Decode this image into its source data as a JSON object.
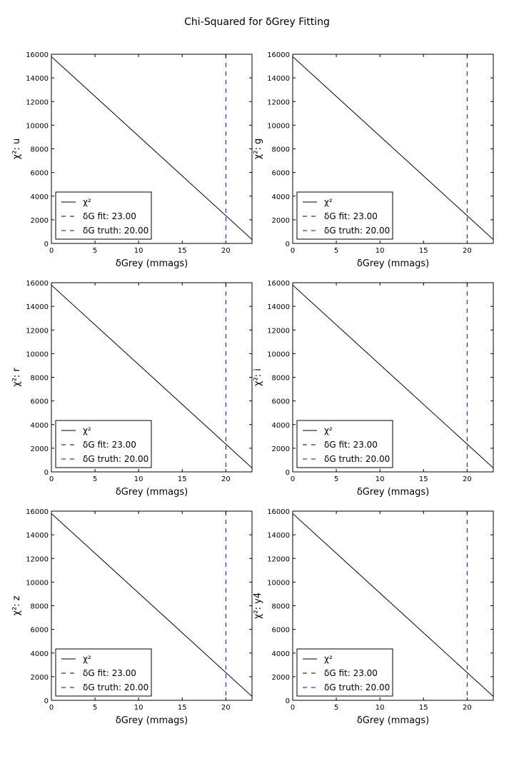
{
  "figure": {
    "suptitle": "Chi-Squared for δGrey Fitting"
  },
  "chart_data": [
    {
      "type": "line",
      "band": "u",
      "xlabel": "δGrey (mmags)",
      "ylabel": "χ²: u",
      "xlim": [
        0,
        23
      ],
      "ylim": [
        0,
        16000
      ],
      "xticks": [
        0,
        5,
        10,
        15,
        20
      ],
      "yticks": [
        0,
        2000,
        4000,
        6000,
        8000,
        10000,
        12000,
        14000,
        16000
      ],
      "series": [
        {
          "name": "χ²",
          "color": "#000000",
          "style": "solid",
          "x": [
            0,
            23
          ],
          "y": [
            15800,
            330
          ]
        }
      ],
      "vlines": [
        {
          "name": "δG fit: 23.00",
          "x": 23,
          "color": "#000000",
          "style": "dashed"
        },
        {
          "name": "δG truth: 20.00",
          "x": 20,
          "color": "#0000ff",
          "style": "dashed"
        }
      ],
      "legend": "lower-left",
      "grid": false
    },
    {
      "type": "line",
      "band": "g",
      "xlabel": "δGrey (mmags)",
      "ylabel": "χ²: g",
      "xlim": [
        0,
        23
      ],
      "ylim": [
        0,
        16000
      ],
      "xticks": [
        0,
        5,
        10,
        15,
        20
      ],
      "yticks": [
        0,
        2000,
        4000,
        6000,
        8000,
        10000,
        12000,
        14000,
        16000
      ],
      "series": [
        {
          "name": "χ²",
          "color": "#000000",
          "style": "solid",
          "x": [
            0,
            23
          ],
          "y": [
            15800,
            330
          ]
        }
      ],
      "vlines": [
        {
          "name": "δG fit: 23.00",
          "x": 23,
          "color": "#000000",
          "style": "dashed"
        },
        {
          "name": "δG truth: 20.00",
          "x": 20,
          "color": "#0000ff",
          "style": "dashed"
        }
      ],
      "legend": "lower-left",
      "grid": false
    },
    {
      "type": "line",
      "band": "r",
      "xlabel": "δGrey (mmags)",
      "ylabel": "χ²: r",
      "xlim": [
        0,
        23
      ],
      "ylim": [
        0,
        16000
      ],
      "xticks": [
        0,
        5,
        10,
        15,
        20
      ],
      "yticks": [
        0,
        2000,
        4000,
        6000,
        8000,
        10000,
        12000,
        14000,
        16000
      ],
      "series": [
        {
          "name": "χ²",
          "color": "#000000",
          "style": "solid",
          "x": [
            0,
            23
          ],
          "y": [
            15800,
            330
          ]
        }
      ],
      "vlines": [
        {
          "name": "δG fit: 23.00",
          "x": 23,
          "color": "#000000",
          "style": "dashed"
        },
        {
          "name": "δG truth: 20.00",
          "x": 20,
          "color": "#0000ff",
          "style": "dashed"
        }
      ],
      "legend": "lower-left",
      "grid": false
    },
    {
      "type": "line",
      "band": "i",
      "xlabel": "δGrey (mmags)",
      "ylabel": "χ²: i",
      "xlim": [
        0,
        23
      ],
      "ylim": [
        0,
        16000
      ],
      "xticks": [
        0,
        5,
        10,
        15,
        20
      ],
      "yticks": [
        0,
        2000,
        4000,
        6000,
        8000,
        10000,
        12000,
        14000,
        16000
      ],
      "series": [
        {
          "name": "χ²",
          "color": "#000000",
          "style": "solid",
          "x": [
            0,
            23
          ],
          "y": [
            15800,
            330
          ]
        }
      ],
      "vlines": [
        {
          "name": "δG fit: 23.00",
          "x": 23,
          "color": "#000000",
          "style": "dashed"
        },
        {
          "name": "δG truth: 20.00",
          "x": 20,
          "color": "#0000ff",
          "style": "dashed"
        }
      ],
      "legend": "lower-left",
      "grid": false
    },
    {
      "type": "line",
      "band": "z",
      "xlabel": "δGrey (mmags)",
      "ylabel": "χ²: z",
      "xlim": [
        0,
        23
      ],
      "ylim": [
        0,
        16000
      ],
      "xticks": [
        0,
        5,
        10,
        15,
        20
      ],
      "yticks": [
        0,
        2000,
        4000,
        6000,
        8000,
        10000,
        12000,
        14000,
        16000
      ],
      "series": [
        {
          "name": "χ²",
          "color": "#000000",
          "style": "solid",
          "x": [
            0,
            23
          ],
          "y": [
            15800,
            330
          ]
        }
      ],
      "vlines": [
        {
          "name": "δG fit: 23.00",
          "x": 23,
          "color": "#000000",
          "style": "dashed"
        },
        {
          "name": "δG truth: 20.00",
          "x": 20,
          "color": "#0000ff",
          "style": "dashed"
        }
      ],
      "legend": "lower-left",
      "grid": false
    },
    {
      "type": "line",
      "band": "y4",
      "xlabel": "δGrey (mmags)",
      "ylabel": "χ²: y4",
      "xlim": [
        0,
        23
      ],
      "ylim": [
        0,
        16000
      ],
      "xticks": [
        0,
        5,
        10,
        15,
        20
      ],
      "yticks": [
        0,
        2000,
        4000,
        6000,
        8000,
        10000,
        12000,
        14000,
        16000
      ],
      "series": [
        {
          "name": "χ²",
          "color": "#000000",
          "style": "solid",
          "x": [
            0,
            23
          ],
          "y": [
            15800,
            330
          ]
        }
      ],
      "vlines": [
        {
          "name": "δG fit: 23.00",
          "x": 23,
          "color": "#000000",
          "style": "dashed"
        },
        {
          "name": "δG truth: 20.00",
          "x": 20,
          "color": "#0000ff",
          "style": "dashed"
        }
      ],
      "legend": "lower-left",
      "grid": false
    }
  ]
}
